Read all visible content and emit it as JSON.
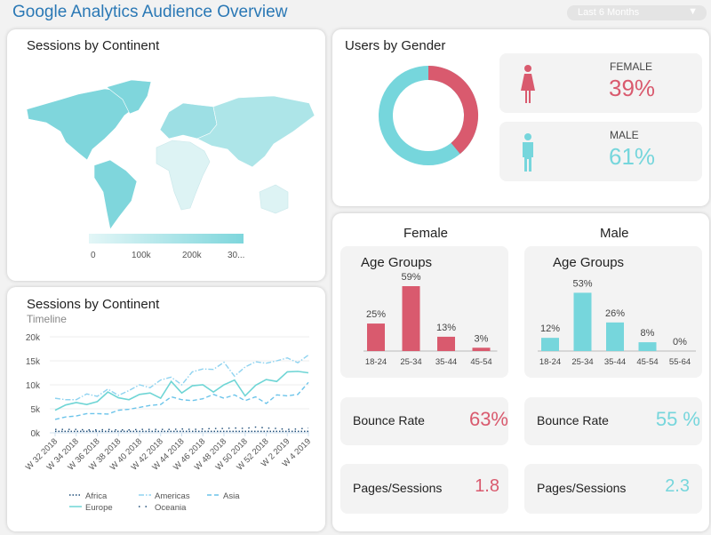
{
  "header": {
    "title": "Google Analytics Audience Overview",
    "period_select": "Last 6 Months"
  },
  "colors": {
    "accent": "#2a78b5",
    "female": "#d95a6e",
    "male": "#76d6dc"
  },
  "map_panel": {
    "title": "Sessions by Continent",
    "legend_ticks": [
      "0",
      "100k",
      "200k",
      "30..."
    ],
    "continents": [
      {
        "name": "North America",
        "level": "high"
      },
      {
        "name": "South America",
        "level": "high"
      },
      {
        "name": "Europe",
        "level": "high"
      },
      {
        "name": "Asia",
        "level": "medium"
      },
      {
        "name": "Africa",
        "level": "low"
      },
      {
        "name": "Oceania",
        "level": "low"
      }
    ]
  },
  "timeline_panel": {
    "title": "Sessions by Continent",
    "subtitle": "Timeline"
  },
  "chart_data": {
    "type": "line",
    "x": [
      "W 32 2018",
      "W 33 2018",
      "W 34 2018",
      "W 35 2018",
      "W 36 2018",
      "W 37 2018",
      "W 38 2018",
      "W 39 2018",
      "W 40 2018",
      "W 41 2018",
      "W 42 2018",
      "W 43 2018",
      "W 44 2018",
      "W 45 2018",
      "W 46 2018",
      "W 47 2018",
      "W 48 2018",
      "W 49 2018",
      "W 50 2018",
      "W 51 2018",
      "W 52 2018",
      "W 1 2019",
      "W 2 2019",
      "W 3 2019",
      "W 4 2019"
    ],
    "x_tick_labels": [
      "W 32 2018",
      "W 34 2018",
      "W 36 2018",
      "W 38 2018",
      "W 40 2018",
      "W 42 2018",
      "W 44 2018",
      "W 46 2018",
      "W 48 2018",
      "W 50 2018",
      "W 52 2018",
      "W 2 2019",
      "W 4 2019"
    ],
    "y_tick_labels": [
      "0k",
      "5k",
      "10k",
      "15k",
      "20k"
    ],
    "ylim": [
      0,
      20000
    ],
    "grid": true,
    "legend": "bottom",
    "series": [
      {
        "name": "Africa",
        "style": "dotted",
        "color": "#1f4e79",
        "values": [
          300,
          300,
          300,
          300,
          300,
          300,
          300,
          300,
          300,
          300,
          300,
          300,
          300,
          300,
          300,
          300,
          300,
          300,
          300,
          300,
          300,
          300,
          300,
          300,
          300
        ]
      },
      {
        "name": "Americas",
        "style": "dashdot",
        "color": "#8fd3f0",
        "values": [
          7200,
          6900,
          6900,
          8100,
          7600,
          9100,
          7800,
          8800,
          10000,
          9400,
          11000,
          11600,
          10000,
          12700,
          13300,
          13200,
          14700,
          11800,
          13700,
          14800,
          14500,
          15000,
          15600,
          14600,
          16200
        ]
      },
      {
        "name": "Asia",
        "style": "dashed",
        "color": "#6cc4ea",
        "values": [
          2800,
          3300,
          3500,
          4000,
          4000,
          3900,
          4700,
          4900,
          5300,
          5700,
          5900,
          7500,
          6900,
          6700,
          7100,
          8000,
          7200,
          7900,
          6700,
          7500,
          6100,
          7900,
          7700,
          8000,
          10500
        ]
      },
      {
        "name": "Europe",
        "style": "solid",
        "color": "#6fd5d5",
        "values": [
          4700,
          5800,
          6300,
          5900,
          6500,
          8500,
          7300,
          6900,
          8000,
          8300,
          7200,
          10700,
          8300,
          9800,
          10000,
          8500,
          10000,
          11000,
          7700,
          9900,
          11100,
          10700,
          12700,
          12800,
          12500
        ]
      },
      {
        "name": "Oceania",
        "style": "sparse-dot",
        "color": "#1f4e79",
        "values": [
          700,
          700,
          700,
          600,
          600,
          700,
          600,
          600,
          700,
          700,
          700,
          700,
          800,
          700,
          800,
          900,
          900,
          1000,
          900,
          1200,
          1000,
          900,
          700,
          800,
          1000
        ]
      }
    ]
  },
  "gender_panel": {
    "title": "Users by Gender",
    "female": {
      "label": "FEMALE",
      "value": "39%",
      "share": 39
    },
    "male": {
      "label": "MALE",
      "value": "61%",
      "share": 61
    }
  },
  "age_panel": {
    "female": {
      "heading": "Female",
      "card_title": "Age Groups",
      "categories": [
        "18-24",
        "25-34",
        "35-44",
        "45-54"
      ],
      "values": [
        25,
        59,
        13,
        3
      ],
      "labels": [
        "25%",
        "59%",
        "13%",
        "3%"
      ],
      "bounce_label": "Bounce Rate",
      "bounce_value": "63%",
      "pages_label": "Pages/Sessions",
      "pages_value": "1.8"
    },
    "male": {
      "heading": "Male",
      "card_title": "Age Groups",
      "categories": [
        "18-24",
        "25-34",
        "35-44",
        "45-54",
        "55-64"
      ],
      "values": [
        12,
        53,
        26,
        8,
        0
      ],
      "labels": [
        "12%",
        "53%",
        "26%",
        "8%",
        "0%"
      ],
      "bounce_label": "Bounce Rate",
      "bounce_value": "55 %",
      "pages_label": "Pages/Sessions",
      "pages_value": "2.3"
    }
  }
}
